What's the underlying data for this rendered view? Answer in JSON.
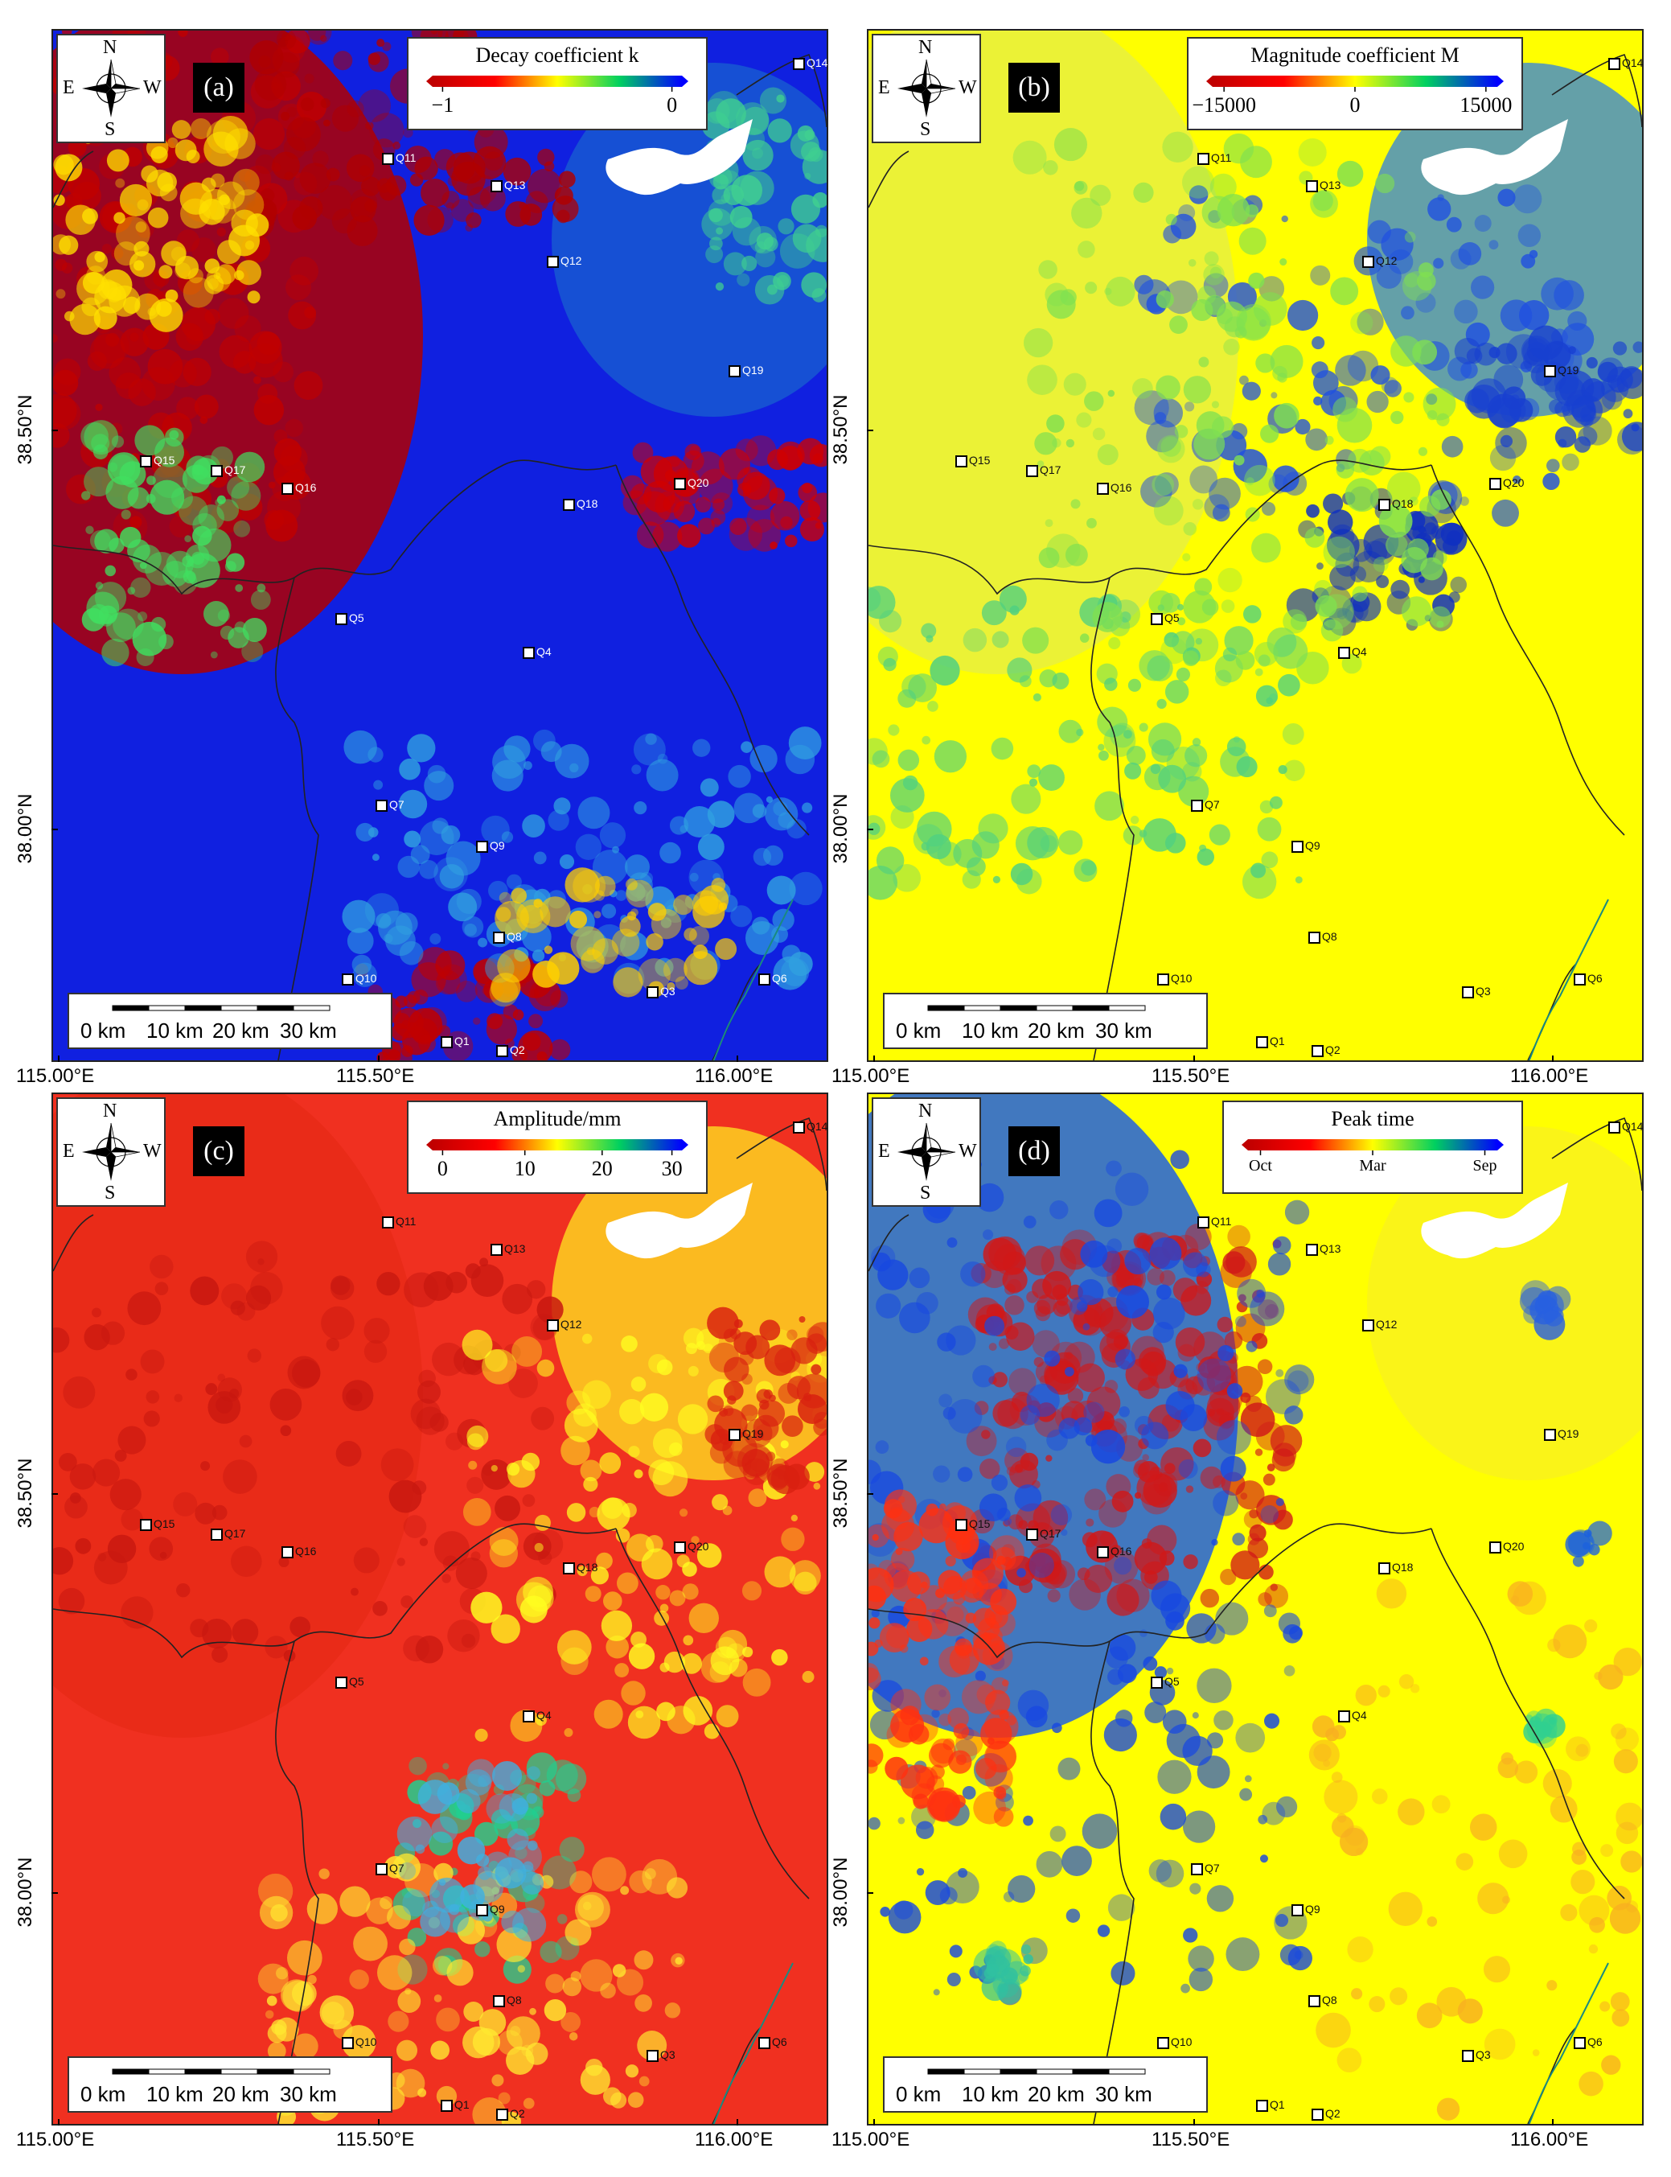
{
  "compass": {
    "north": "N",
    "south": "S",
    "east": "E",
    "west": "W"
  },
  "scale_labels": [
    "0 km",
    "10 km",
    "20 km",
    "30 km"
  ],
  "x_ticks": [
    "115.00°E",
    "115.50°E",
    "116.00°E"
  ],
  "y_ticks": [
    "38.50°N",
    "38.00°N"
  ],
  "panels": [
    {
      "label": "(a)",
      "legend_title": "Decay coefficient k",
      "legend_ticks": [
        "−1",
        "0"
      ],
      "colorbar": [
        "#c00000",
        "#ff0000",
        "#ffff00",
        "#00d060",
        "#0000ff"
      ],
      "site_label_style": "light",
      "colors": {
        "base": "#1020e0",
        "west": "#b00000",
        "northeast": "#1860d0"
      }
    },
    {
      "label": "(b)",
      "legend_title": "Magnitude coefficient M",
      "legend_ticks": [
        "−15000",
        "0",
        "15000"
      ],
      "colorbar": [
        "#c00000",
        "#ff0000",
        "#ffff00",
        "#00d060",
        "#0000ff"
      ],
      "site_label_style": "dark",
      "colors": {
        "base": "#ffff00",
        "west": "#e8f040",
        "northeast": "#3080e0"
      }
    },
    {
      "label": "(c)",
      "legend_title": "Amplitude/mm",
      "legend_ticks": [
        "0",
        "10",
        "20",
        "30"
      ],
      "colorbar": [
        "#c00000",
        "#ff0000",
        "#ffff00",
        "#00d060",
        "#0000ff"
      ],
      "site_label_style": "dark",
      "colors": {
        "base": "#f03020",
        "west": "#e82a18",
        "northeast": "#ffe820"
      }
    },
    {
      "label": "(d)",
      "legend_title": "Peak time",
      "legend_ticks": [
        "Oct",
        "Mar",
        "Sep"
      ],
      "colorbar": [
        "#c00000",
        "#ff0000",
        "#ffff00",
        "#00d060",
        "#0000ff"
      ],
      "site_label_style": "dark",
      "colors": {
        "base": "#ffff00",
        "west": "#2060e0",
        "northeast": "#f8f020"
      }
    }
  ],
  "sites": [
    "Q1",
    "Q2",
    "Q3",
    "Q4",
    "Q5",
    "Q6",
    "Q7",
    "Q8",
    "Q9",
    "Q10",
    "Q11",
    "Q12",
    "Q13",
    "Q14",
    "Q15",
    "Q16",
    "Q17",
    "Q18",
    "Q19",
    "Q20"
  ]
}
